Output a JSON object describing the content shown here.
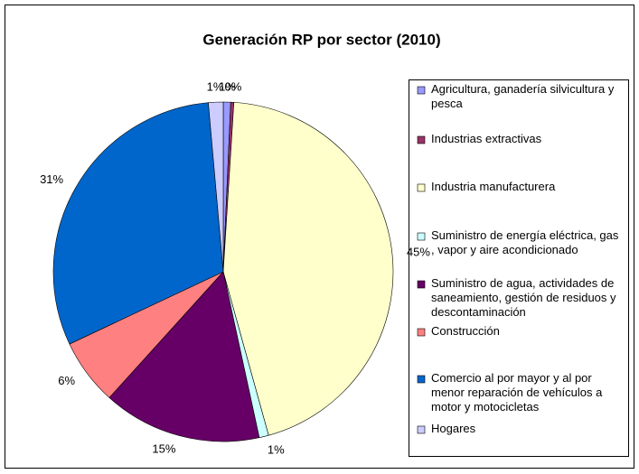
{
  "chart_data": {
    "type": "pie",
    "title": "Generación RP por sector (2010)",
    "categories": [
      "Agricultura, ganadería silvicultura y pesca",
      "Industrias extractivas",
      "Industria manufacturera",
      "Suministro de energía eléctrica, gas , vapor y aire acondicionado",
      "Suministro de agua, actividades de saneamiento, gestión de residuos y descontaminación",
      "Construcción",
      "Comercio al por mayor y al por menor reparación de vehículos a motor y motocicletas",
      "Hogares"
    ],
    "values": [
      0.7,
      0.3,
      44.7,
      0.9,
      15.1,
      6.3,
      30.6,
      1.4
    ],
    "value_labels": [
      "1%",
      "0%",
      "45%",
      "1%",
      "15%",
      "6%",
      "31%",
      "1%"
    ],
    "colors": [
      "#9999ff",
      "#993366",
      "#ffffcc",
      "#ccffff",
      "#660066",
      "#ff8080",
      "#0066cc",
      "#ccccff"
    ],
    "legend": "right"
  }
}
